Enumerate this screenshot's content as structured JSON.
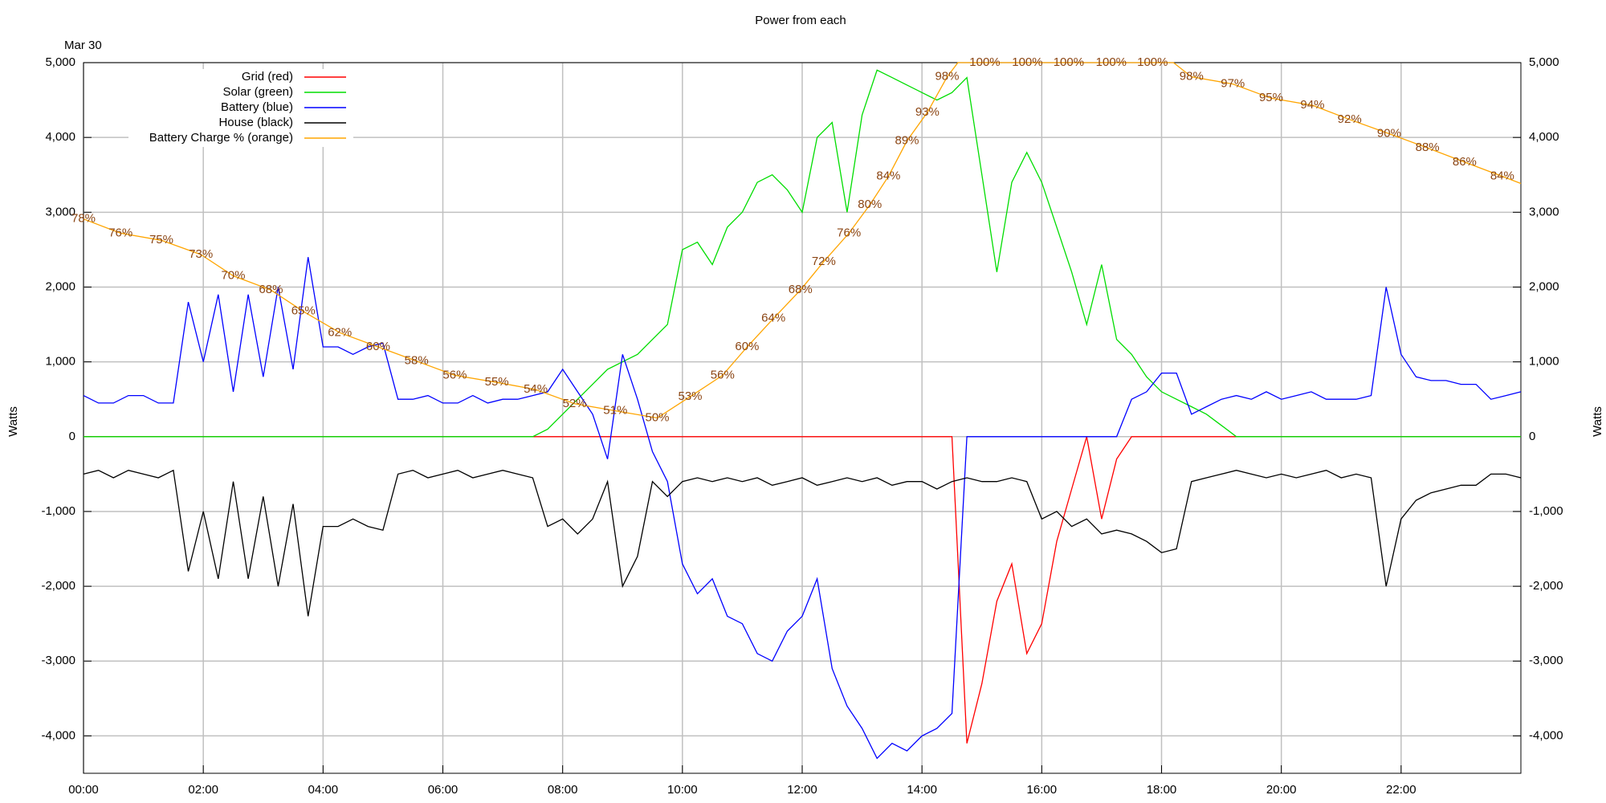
{
  "chart_data": {
    "type": "line",
    "title": "Power from each",
    "date_label": "Mar 30",
    "ylabel": "Watts",
    "y2label": "Watts",
    "legend": "upper left",
    "grid": true,
    "xlim": [
      0,
      24
    ],
    "ylim": [
      -4500,
      5000
    ],
    "y2lim": [
      0,
      100
    ],
    "xticks": [
      {
        "value": 0,
        "label": "00:00"
      },
      {
        "value": 2,
        "label": "02:00"
      },
      {
        "value": 4,
        "label": "04:00"
      },
      {
        "value": 6,
        "label": "06:00"
      },
      {
        "value": 8,
        "label": "08:00"
      },
      {
        "value": 10,
        "label": "10:00"
      },
      {
        "value": 12,
        "label": "12:00"
      },
      {
        "value": 14,
        "label": "14:00"
      },
      {
        "value": 16,
        "label": "16:00"
      },
      {
        "value": 18,
        "label": "18:00"
      },
      {
        "value": 20,
        "label": "20:00"
      },
      {
        "value": 22,
        "label": "22:00"
      }
    ],
    "yticks": [
      {
        "value": -4000,
        "label": "-4,000"
      },
      {
        "value": -3000,
        "label": "-3,000"
      },
      {
        "value": -2000,
        "label": "-2,000"
      },
      {
        "value": -1000,
        "label": "-1,000"
      },
      0,
      {
        "value": 1000,
        "label": "1,000"
      },
      {
        "value": 2000,
        "label": "2,000"
      },
      {
        "value": 3000,
        "label": "3,000"
      },
      {
        "value": 4000,
        "label": "4,000"
      },
      {
        "value": 5000,
        "label": "5,000"
      }
    ],
    "x": [
      0,
      0.25,
      0.5,
      0.75,
      1,
      1.25,
      1.5,
      1.75,
      2,
      2.25,
      2.5,
      2.75,
      3,
      3.25,
      3.5,
      3.75,
      4,
      4.25,
      4.5,
      4.75,
      5,
      5.25,
      5.5,
      5.75,
      6,
      6.25,
      6.5,
      6.75,
      7,
      7.25,
      7.5,
      7.75,
      8,
      8.25,
      8.5,
      8.75,
      9,
      9.25,
      9.5,
      9.75,
      10,
      10.25,
      10.5,
      10.75,
      11,
      11.25,
      11.5,
      11.75,
      12,
      12.25,
      12.5,
      12.75,
      13,
      13.25,
      13.5,
      13.75,
      14,
      14.25,
      14.5,
      14.75,
      15,
      15.25,
      15.5,
      15.75,
      16,
      16.25,
      16.5,
      16.75,
      17,
      17.25,
      17.5,
      17.75,
      18,
      18.25,
      18.5,
      18.75,
      19,
      19.25,
      19.5,
      19.75,
      20,
      20.25,
      20.5,
      20.75,
      21,
      21.25,
      21.5,
      21.75,
      22,
      22.25,
      22.5,
      22.75,
      23,
      23.25,
      23.5,
      23.75,
      24
    ],
    "series": [
      {
        "name": "Grid (red)",
        "color": "#ff0000",
        "values": [
          0,
          0,
          0,
          0,
          0,
          0,
          0,
          0,
          0,
          0,
          0,
          0,
          0,
          0,
          0,
          0,
          0,
          0,
          0,
          0,
          0,
          0,
          0,
          0,
          0,
          0,
          0,
          0,
          0,
          0,
          0,
          0,
          0,
          0,
          0,
          0,
          0,
          0,
          0,
          0,
          0,
          0,
          0,
          0,
          0,
          0,
          0,
          0,
          0,
          0,
          0,
          0,
          0,
          0,
          0,
          0,
          0,
          0,
          0,
          -4100,
          -3300,
          -2200,
          -1700,
          -2900,
          -2500,
          -1400,
          -700,
          0,
          -1100,
          -300,
          0,
          0,
          0,
          0,
          0,
          0,
          0,
          0,
          0,
          0,
          0,
          0,
          0,
          0,
          0,
          0,
          0,
          0,
          0,
          0,
          0,
          0,
          0,
          0,
          0,
          0,
          0
        ]
      },
      {
        "name": "Solar (green)",
        "color": "#00dd00",
        "values": [
          0,
          0,
          0,
          0,
          0,
          0,
          0,
          0,
          0,
          0,
          0,
          0,
          0,
          0,
          0,
          0,
          0,
          0,
          0,
          0,
          0,
          0,
          0,
          0,
          0,
          0,
          0,
          0,
          0,
          0,
          0,
          100,
          300,
          500,
          700,
          900,
          1000,
          1100,
          1300,
          1500,
          2500,
          2600,
          2300,
          2800,
          3000,
          3400,
          3500,
          3300,
          3000,
          4000,
          4200,
          3000,
          4300,
          4900,
          4800,
          4700,
          4600,
          4500,
          4600,
          4800,
          3500,
          2200,
          3400,
          3800,
          3400,
          2800,
          2200,
          1500,
          2300,
          1300,
          1100,
          800,
          600,
          500,
          400,
          300,
          150,
          0,
          0,
          0,
          0,
          0,
          0,
          0,
          0,
          0,
          0,
          0,
          0,
          0,
          0,
          0,
          0,
          0,
          0,
          0,
          0
        ]
      },
      {
        "name": "Battery (blue)",
        "color": "#0000ff",
        "values": [
          550,
          450,
          450,
          550,
          550,
          450,
          450,
          1800,
          1000,
          1900,
          600,
          1900,
          800,
          2000,
          900,
          2400,
          1200,
          1200,
          1100,
          1200,
          1250,
          500,
          500,
          550,
          450,
          450,
          550,
          450,
          500,
          500,
          550,
          600,
          900,
          600,
          300,
          -300,
          1100,
          500,
          -200,
          -600,
          -1700,
          -2100,
          -1900,
          -2400,
          -2500,
          -2900,
          -3000,
          -2600,
          -2400,
          -1900,
          -3100,
          -3600,
          -3900,
          -4300,
          -4100,
          -4200,
          -4000,
          -3900,
          -3700,
          0,
          0,
          0,
          0,
          0,
          0,
          0,
          0,
          0,
          0,
          0,
          500,
          600,
          850,
          850,
          300,
          400,
          500,
          550,
          500,
          600,
          500,
          550,
          600,
          500,
          500,
          500,
          550,
          2000,
          1100,
          800,
          750,
          750,
          700,
          700,
          500,
          550,
          600
        ]
      },
      {
        "name": "House (black)",
        "color": "#000000",
        "values": [
          -500,
          -450,
          -550,
          -450,
          -500,
          -550,
          -450,
          -1800,
          -1000,
          -1900,
          -600,
          -1900,
          -800,
          -2000,
          -900,
          -2400,
          -1200,
          -1200,
          -1100,
          -1200,
          -1250,
          -500,
          -450,
          -550,
          -500,
          -450,
          -550,
          -500,
          -450,
          -500,
          -550,
          -1200,
          -1100,
          -1300,
          -1100,
          -600,
          -2000,
          -1600,
          -600,
          -800,
          -600,
          -550,
          -600,
          -550,
          -600,
          -550,
          -650,
          -600,
          -550,
          -650,
          -600,
          -550,
          -600,
          -550,
          -650,
          -600,
          -600,
          -700,
          -600,
          -550,
          -600,
          -600,
          -550,
          -600,
          -1100,
          -1000,
          -1200,
          -1100,
          -1300,
          -1250,
          -1300,
          -1400,
          -1550,
          -1500,
          -600,
          -550,
          -500,
          -450,
          -500,
          -550,
          -500,
          -550,
          -500,
          -450,
          -550,
          -500,
          -550,
          -2000,
          -1100,
          -850,
          -750,
          -700,
          -650,
          -650,
          -500,
          -500,
          -550
        ]
      },
      {
        "name": "Battery Charge % (orange)",
        "color": "#ffa500",
        "label_color": "#8b4513",
        "axis": "y2",
        "x": [
          0,
          0.62,
          1.3,
          1.96,
          2.5,
          3.13,
          3.67,
          4.28,
          4.92,
          5.56,
          6.2,
          6.9,
          7.55,
          8.2,
          8.88,
          9.58,
          10.13,
          10.67,
          11.08,
          11.52,
          11.97,
          12.36,
          12.78,
          13.13,
          13.44,
          13.75,
          14.09,
          14.42,
          14.6,
          15.05,
          15.76,
          16.45,
          17.16,
          17.85,
          18.2,
          18.5,
          19.19,
          19.83,
          20.52,
          21.14,
          21.8,
          22.44,
          23.06,
          23.69,
          24
        ],
        "values": [
          78,
          76,
          75,
          73,
          70,
          68,
          65,
          62,
          60,
          58,
          56,
          55,
          54,
          52,
          51,
          50,
          53,
          56,
          60,
          64,
          68,
          72,
          76,
          80,
          84,
          89,
          93,
          98,
          100,
          100,
          100,
          100,
          100,
          100,
          100,
          98,
          97,
          95,
          94,
          92,
          90,
          88,
          86,
          84,
          83
        ],
        "value_labels": [
          "78%",
          "76%",
          "75%",
          "73%",
          "70%",
          "68%",
          "65%",
          "62%",
          "60%",
          "58%",
          "56%",
          "55%",
          "54%",
          "52%",
          "51%",
          "50%",
          "53%",
          "56%",
          "60%",
          "64%",
          "68%",
          "72%",
          "76%",
          "80%",
          "84%",
          "89%",
          "93%",
          "98%",
          null,
          "100%",
          "100%",
          "100%",
          "100%",
          "100%",
          null,
          "98%",
          "97%",
          "95%",
          "94%",
          "92%",
          "90%",
          "88%",
          "86%",
          "84%",
          null
        ]
      }
    ]
  }
}
